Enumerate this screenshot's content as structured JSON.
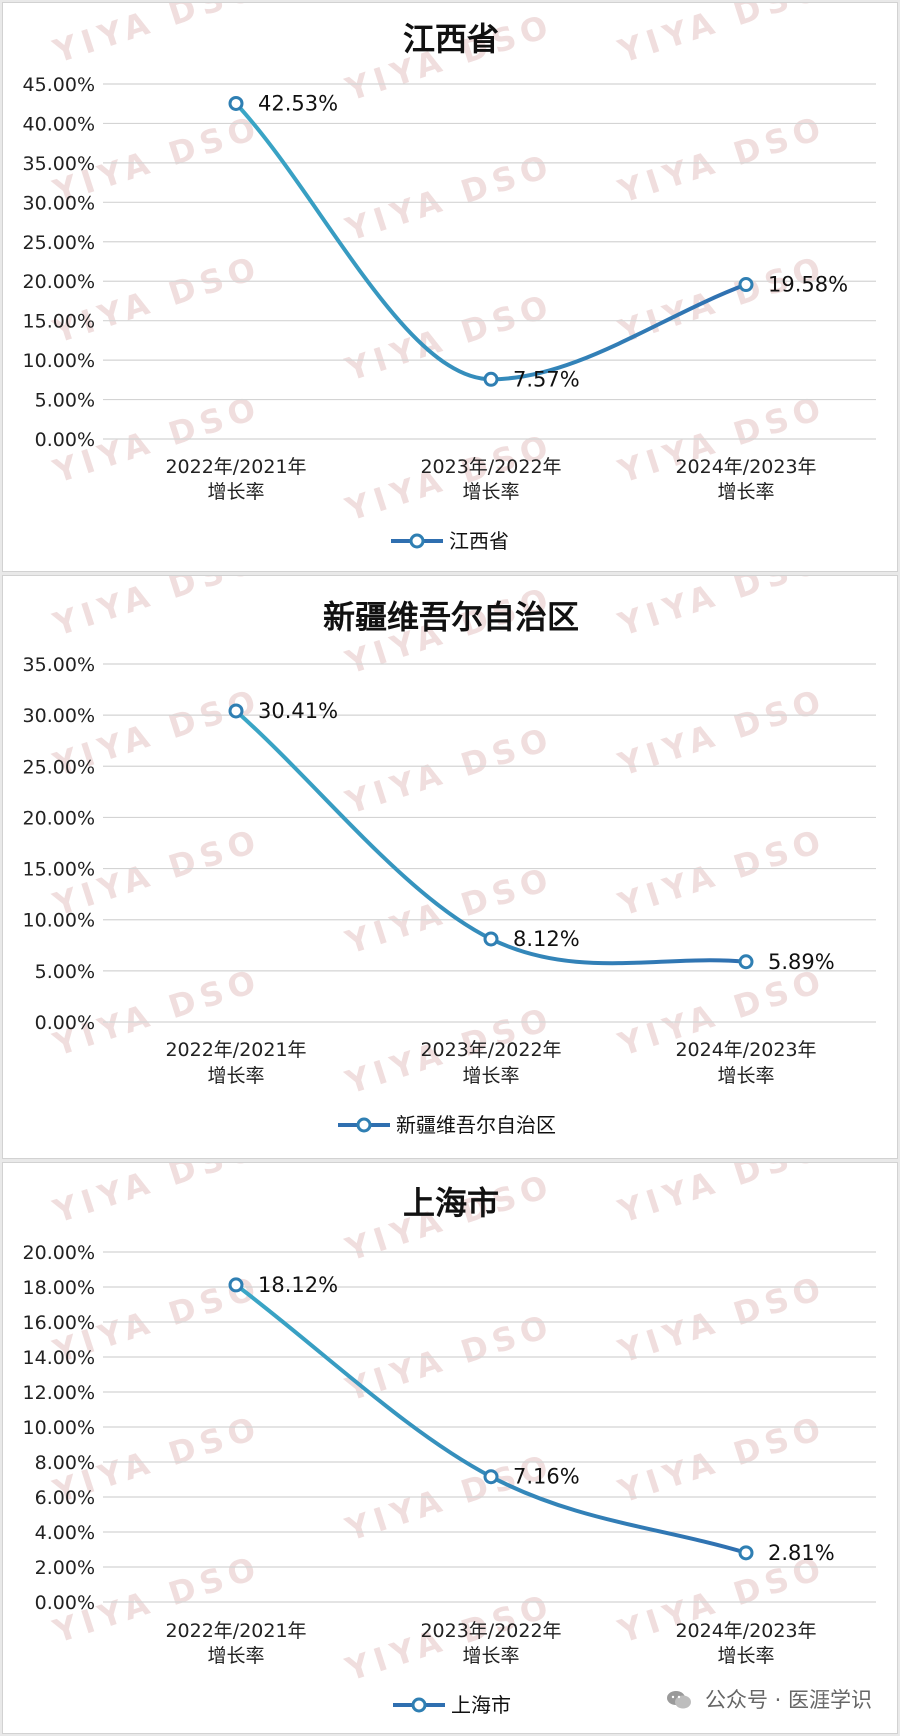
{
  "footer": {
    "text": "公众号 · 医涯学识",
    "icon": "wechat-icon"
  },
  "watermark": "YIYA DSO",
  "colors": {
    "line": "#2f6fb0",
    "line_light": "#3aa7c6",
    "grid": "#d4d4d4",
    "marker_fill": "#ffffff",
    "marker_stroke": "#2f7fb3"
  },
  "chart_data": [
    {
      "type": "line",
      "title": "江西省",
      "categories": [
        "2022年/2021年 增长率",
        "2023年/2022年 增长率",
        "2024年/2023年 增长率"
      ],
      "category_lines": [
        [
          "2022年/2021年",
          "增长率"
        ],
        [
          "2023年/2022年",
          "增长率"
        ],
        [
          "2024年/2023年",
          "增长率"
        ]
      ],
      "series": [
        {
          "name": "江西省",
          "values": [
            42.53,
            7.57,
            19.58
          ],
          "labels": [
            "42.53%",
            "7.57%",
            "19.58%"
          ]
        }
      ],
      "ylim": [
        0,
        45
      ],
      "ytick_step": 5,
      "yticks": [
        "0.00%",
        "5.00%",
        "10.00%",
        "15.00%",
        "20.00%",
        "25.00%",
        "30.00%",
        "35.00%",
        "40.00%",
        "45.00%"
      ],
      "grid": true,
      "smooth": true,
      "legend_position": "bottom"
    },
    {
      "type": "line",
      "title": "新疆维吾尔自治区",
      "categories": [
        "2022年/2021年 增长率",
        "2023年/2022年 增长率",
        "2024年/2023年 增长率"
      ],
      "category_lines": [
        [
          "2022年/2021年",
          "增长率"
        ],
        [
          "2023年/2022年",
          "增长率"
        ],
        [
          "2024年/2023年",
          "增长率"
        ]
      ],
      "series": [
        {
          "name": "新疆维吾尔自治区",
          "values": [
            30.41,
            8.12,
            5.89
          ],
          "labels": [
            "30.41%",
            "8.12%",
            "5.89%"
          ]
        }
      ],
      "ylim": [
        0,
        35
      ],
      "ytick_step": 5,
      "yticks": [
        "0.00%",
        "5.00%",
        "10.00%",
        "15.00%",
        "20.00%",
        "25.00%",
        "30.00%",
        "35.00%"
      ],
      "grid": true,
      "smooth": true,
      "legend_position": "bottom"
    },
    {
      "type": "line",
      "title": "上海市",
      "categories": [
        "2022年/2021年 增长率",
        "2023年/2022年 增长率",
        "2024年/2023年 增长率"
      ],
      "category_lines": [
        [
          "2022年/2021年",
          "增长率"
        ],
        [
          "2023年/2022年",
          "增长率"
        ],
        [
          "2024年/2023年",
          "增长率"
        ]
      ],
      "series": [
        {
          "name": "上海市",
          "values": [
            18.12,
            7.16,
            2.81
          ],
          "labels": [
            "18.12%",
            "7.16%",
            "2.81%"
          ]
        }
      ],
      "ylim": [
        0,
        20
      ],
      "ytick_step": 2,
      "yticks": [
        "0.00%",
        "2.00%",
        "4.00%",
        "6.00%",
        "8.00%",
        "10.00%",
        "12.00%",
        "14.00%",
        "16.00%",
        "18.00%",
        "20.00%"
      ],
      "grid": true,
      "smooth": true,
      "legend_position": "bottom"
    }
  ]
}
